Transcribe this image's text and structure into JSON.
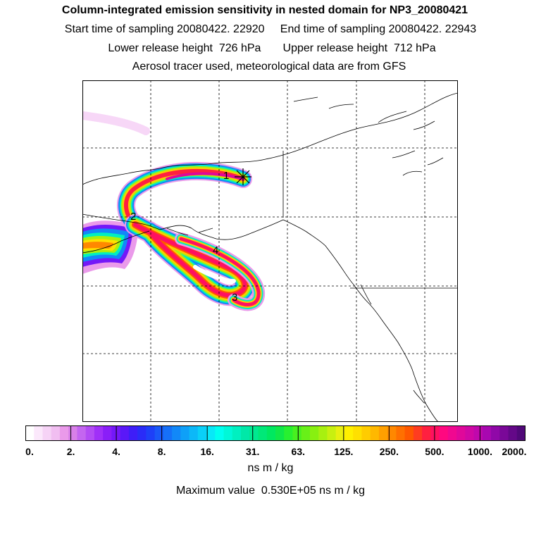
{
  "header": {
    "title": "Column-integrated emission sensitivity in nested domain for NP3_20080421",
    "line2": "Start time of sampling 20080422. 22920     End time of sampling 20080422. 22943",
    "line3": "Lower release height  726 hPa       Upper release height  712 hPa",
    "line4": "Aerosol tracer used, meteorological data are from GFS"
  },
  "map": {
    "markers": [
      {
        "id": "1",
        "label": "1"
      },
      {
        "id": "2",
        "label": "2"
      },
      {
        "id": "3",
        "label": "3"
      },
      {
        "id": "4",
        "label": "4"
      }
    ],
    "release_point_symbol": "asterisk-star-icon"
  },
  "legend": {
    "tick_labels": [
      "0.",
      "2.",
      "4.",
      "8.",
      "16.",
      "31.",
      "63.",
      "125.",
      "250.",
      "500.",
      "1000.",
      "2000."
    ],
    "colors": [
      "#ffffff",
      "#fbe8fb",
      "#f6d3f6",
      "#f1bef1",
      "#ea9aea",
      "#d880e8",
      "#c466f0",
      "#b34cf4",
      "#a030f8",
      "#8a1ef8",
      "#7418f8",
      "#5a18f8",
      "#3e1ef8",
      "#2a2cf8",
      "#1e40f8",
      "#1a58f8",
      "#1670f8",
      "#1288f8",
      "#0ea0f8",
      "#0cb8f8",
      "#0ad0f8",
      "#08e8f8",
      "#00fff0",
      "#00f8d8",
      "#00f0c0",
      "#00e8a8",
      "#00e890",
      "#00e878",
      "#00e860",
      "#10e848",
      "#28f030",
      "#48f020",
      "#68f018",
      "#88f010",
      "#a8f010",
      "#c8f010",
      "#e8f010",
      "#fff000",
      "#ffe000",
      "#ffcc00",
      "#ffb800",
      "#ffa000",
      "#ff8800",
      "#ff7000",
      "#ff5800",
      "#ff3c20",
      "#ff2040",
      "#ff1060",
      "#ff0880",
      "#f00890",
      "#e0089a",
      "#d008a4",
      "#c008ac",
      "#a808b0",
      "#9008a8",
      "#7a0898",
      "#640888",
      "#500878"
    ],
    "unit": "ns m / kg",
    "max_text": "Maximum value  0.530E+05 ns m / kg"
  }
}
